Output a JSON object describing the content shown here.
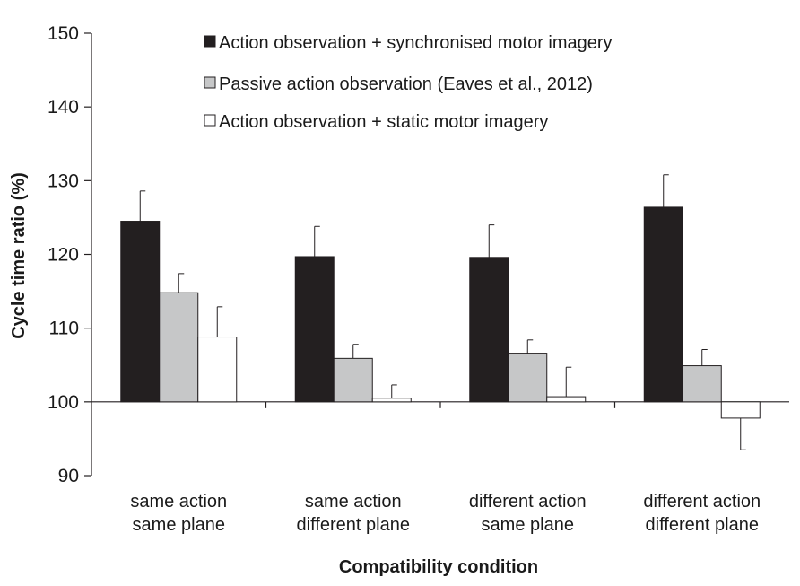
{
  "chart_data": {
    "type": "bar",
    "xlabel": "Compatibility condition",
    "ylabel": "Cycle time ratio (%)",
    "ylim": [
      90,
      150
    ],
    "yticks": [
      "90",
      "100",
      "110",
      "120",
      "130",
      "140",
      "150"
    ],
    "baseline": 100,
    "grid": false,
    "legend_position": "top-right",
    "categories": [
      [
        "same action",
        "same plane"
      ],
      [
        "same action",
        "different plane"
      ],
      [
        "different action",
        "same plane"
      ],
      [
        "different action",
        "different plane"
      ]
    ],
    "series": [
      {
        "name": "Action observation + synchronised motor imagery",
        "color": "#231f20",
        "values": [
          124.5,
          119.7,
          119.6,
          126.4
        ],
        "errors": [
          4.1,
          4.1,
          4.4,
          4.4
        ]
      },
      {
        "name": "Passive action observation (Eaves et al., 2012)",
        "color": "#c6c7c8",
        "values": [
          114.8,
          105.9,
          106.6,
          104.9
        ],
        "errors": [
          2.6,
          1.9,
          1.8,
          2.2
        ]
      },
      {
        "name": "Action observation + static motor imagery",
        "color": "#ffffff",
        "values": [
          108.8,
          100.5,
          100.7,
          97.8
        ],
        "errors": [
          4.1,
          1.8,
          4.0,
          4.3
        ]
      }
    ]
  }
}
